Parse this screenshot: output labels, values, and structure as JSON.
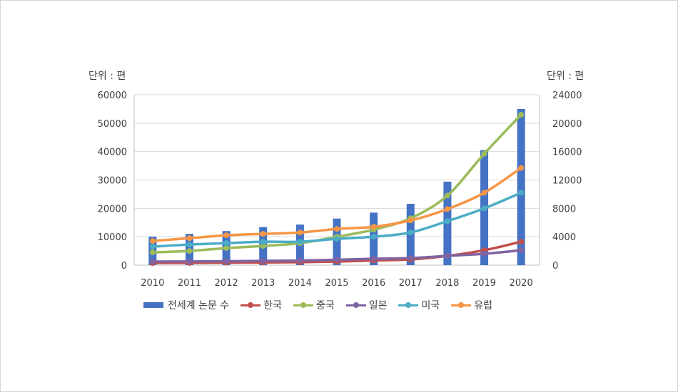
{
  "chart_data": {
    "type": "bar+line",
    "categories": [
      "2010",
      "2011",
      "2012",
      "2013",
      "2014",
      "2015",
      "2016",
      "2017",
      "2018",
      "2019",
      "2020"
    ],
    "left_axis": {
      "unit_label": "단위 : 편",
      "ylim": [
        0,
        60000
      ],
      "ticks": [
        0,
        10000,
        20000,
        30000,
        40000,
        50000,
        60000
      ]
    },
    "right_axis": {
      "unit_label": "단위 : 편",
      "ylim": [
        0,
        24000
      ],
      "ticks": [
        0,
        4000,
        8000,
        12000,
        16000,
        20000,
        24000
      ]
    },
    "grid": true,
    "legend_position": "bottom",
    "bar_series": {
      "name": "전세계 논문 수",
      "axis": "left",
      "color": "#4472c4",
      "values": [
        10000,
        11000,
        12000,
        13400,
        14300,
        16400,
        18500,
        21600,
        29400,
        40500,
        55000
      ]
    },
    "line_series": [
      {
        "name": "한국",
        "axis": "right",
        "color": "#c0504d",
        "values": [
          300,
          320,
          350,
          380,
          420,
          500,
          650,
          800,
          1300,
          2100,
          3300
        ]
      },
      {
        "name": "중국",
        "axis": "right",
        "color": "#9bbb59",
        "values": [
          1800,
          2000,
          2400,
          2700,
          3100,
          4000,
          5000,
          6600,
          9800,
          15700,
          21200
        ]
      },
      {
        "name": "일본",
        "axis": "right",
        "color": "#8064a2",
        "values": [
          500,
          520,
          550,
          600,
          650,
          750,
          900,
          1000,
          1300,
          1600,
          2100
        ]
      },
      {
        "name": "미국",
        "axis": "right",
        "color": "#4bacc6",
        "values": [
          2600,
          2900,
          3100,
          3300,
          3300,
          3700,
          4000,
          4600,
          6200,
          8000,
          10200
        ]
      },
      {
        "name": "유럽",
        "axis": "right",
        "color": "#f79646",
        "values": [
          3400,
          3800,
          4200,
          4400,
          4600,
          5100,
          5400,
          6300,
          7900,
          10200,
          13700
        ]
      }
    ]
  }
}
